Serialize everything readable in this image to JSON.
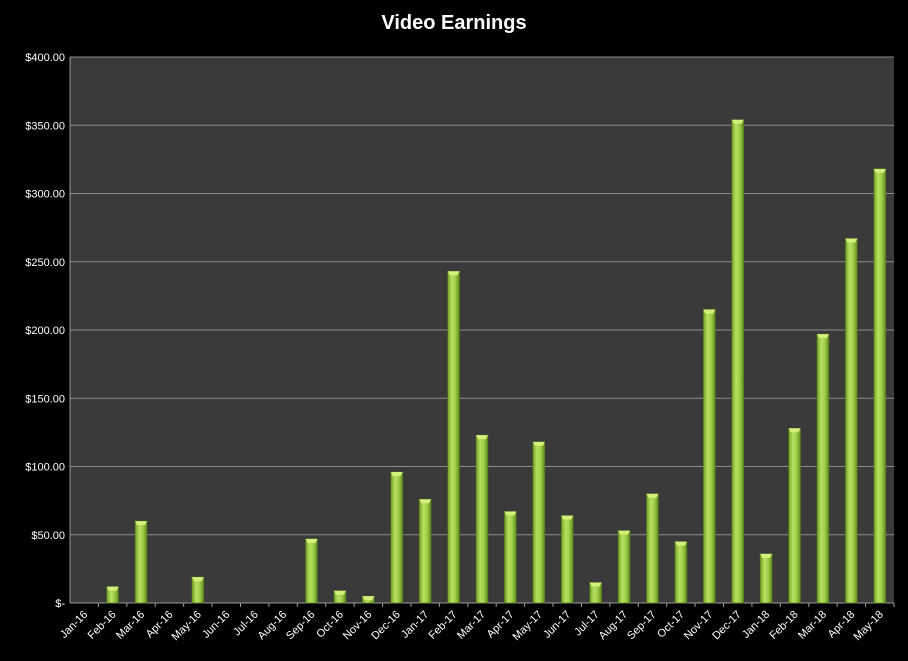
{
  "chart_data": {
    "type": "bar",
    "title": "Video Earnings",
    "xlabel": "",
    "ylabel": "",
    "categories": [
      "Jan-16",
      "Feb-16",
      "Mar-16",
      "Apr-16",
      "May-16",
      "Jun-16",
      "Jul-16",
      "Aug-16",
      "Sep-16",
      "Oct-16",
      "Nov-16",
      "Dec-16",
      "Jan-17",
      "Feb-17",
      "Mar-17",
      "Apr-17",
      "May-17",
      "Jun-17",
      "Jul-17",
      "Aug-17",
      "Sep-17",
      "Oct-17",
      "Nov-17",
      "Dec-17",
      "Jan-18",
      "Feb-18",
      "Mar-18",
      "Apr-18",
      "May-18"
    ],
    "values": [
      0,
      12,
      60,
      0,
      19,
      0,
      0,
      0,
      47,
      9,
      5,
      96,
      76,
      243,
      123,
      67,
      118,
      64,
      15,
      53,
      80,
      45,
      215,
      354,
      36,
      128,
      197,
      267,
      318
    ],
    "ylim": [
      0,
      400
    ],
    "yticks": [
      0,
      50,
      100,
      150,
      200,
      250,
      300,
      350,
      400
    ],
    "ytick_labels": [
      "$-",
      "$50.00",
      "$100.00",
      "$150.00",
      "$200.00",
      "$250.00",
      "$300.00",
      "$350.00",
      "$400.00"
    ],
    "grid": true,
    "legend": "none",
    "colors": {
      "background": "#000000",
      "plot_area": "#3a3a3a",
      "gridline": "#8c8c8c",
      "bar": "#8fc43a",
      "bar_highlight": "#d4f07a",
      "bar_shadow": "#5f8a1f",
      "text": "#ffffff"
    }
  }
}
